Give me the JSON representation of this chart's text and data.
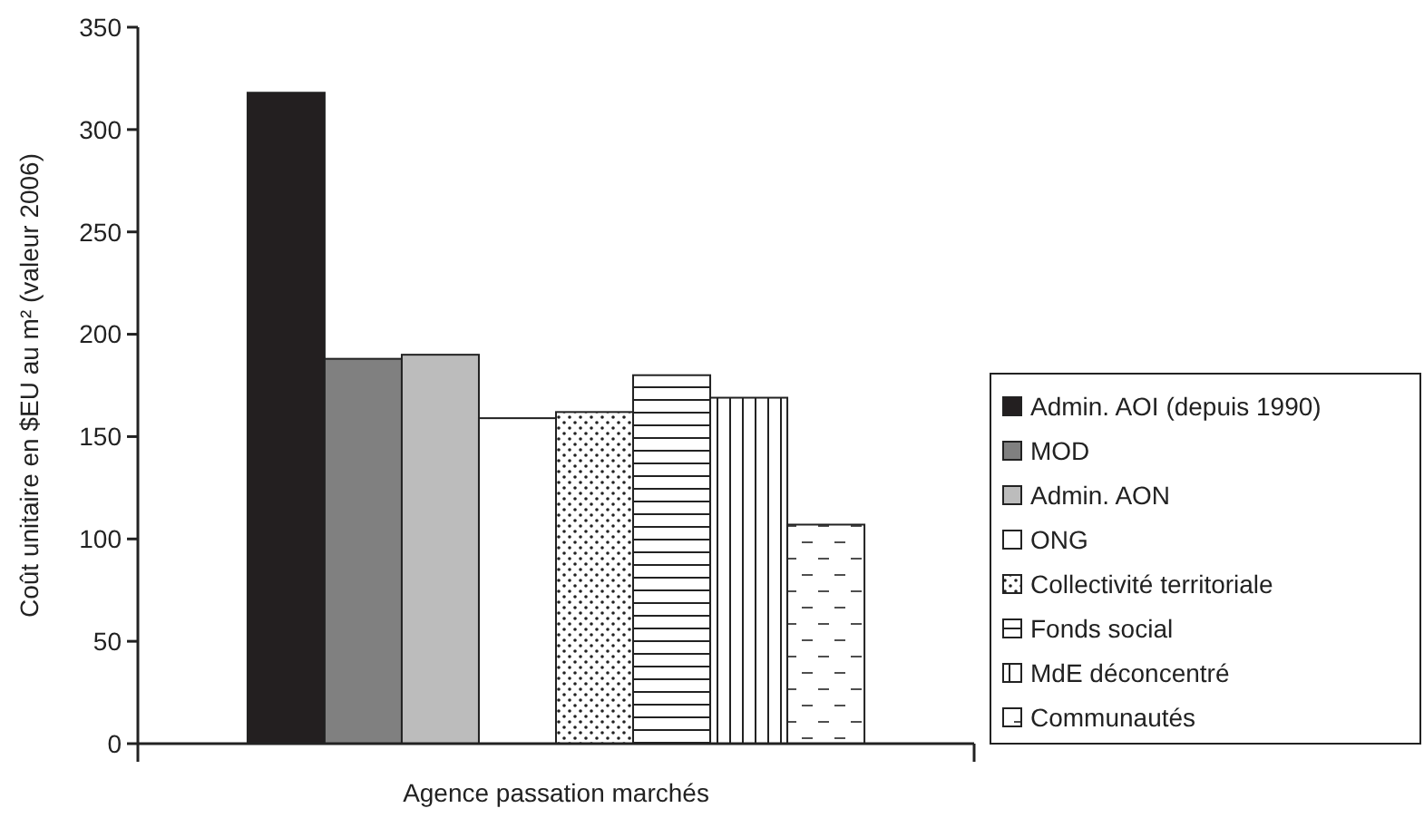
{
  "chart_data": {
    "type": "bar",
    "xlabel": "Agence passation marchés",
    "ylabel": "Coût unitaire en $EU au m² (valeur 2006)",
    "categories": [
      null
    ],
    "ylim": [
      0,
      350
    ],
    "yticks": [
      0,
      50,
      100,
      150,
      200,
      250,
      300,
      350
    ],
    "legend": "right",
    "series": [
      {
        "name": "Admin. AOI (depuis 1990)",
        "color": "#231f20",
        "values": [
          318
        ]
      },
      {
        "name": "MOD",
        "color": "#808080",
        "values": [
          188
        ]
      },
      {
        "name": "Admin. AON",
        "color": "#bcbcbc",
        "values": [
          190
        ]
      },
      {
        "name": "ONG",
        "color": "#ffffff",
        "values": [
          159
        ]
      },
      {
        "name": "Collectivité territoriale",
        "color": "#222222",
        "values": [
          162
        ]
      },
      {
        "name": "Fonds social",
        "color": "#222222",
        "values": [
          180
        ]
      },
      {
        "name": "MdE déconcentré",
        "color": "#222222",
        "values": [
          169
        ]
      },
      {
        "name": "Communautés",
        "color": "#222222",
        "values": [
          107
        ]
      }
    ]
  }
}
